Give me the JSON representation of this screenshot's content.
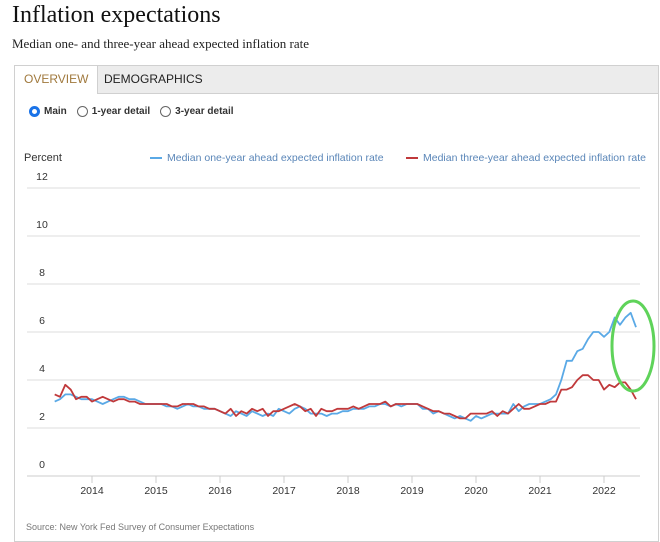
{
  "title": "Inflation expectations",
  "subtitle": "Median one- and three-year ahead expected inflation rate",
  "tabs": [
    {
      "label": "OVERVIEW",
      "active": true
    },
    {
      "label": "DEMOGRAPHICS",
      "active": false
    }
  ],
  "radios": [
    {
      "label": "Main",
      "selected": true
    },
    {
      "label": "1-year detail",
      "selected": false
    },
    {
      "label": "3-year detail",
      "selected": false
    }
  ],
  "source": "Source: New York Fed Survey of Consumer Expectations",
  "annotation": {
    "shape": "ellipse",
    "color": "#5fd35a",
    "target": "latest values (2022)"
  },
  "chart_data": {
    "type": "line",
    "ylabel": "Percent",
    "ylim": [
      0,
      12
    ],
    "yticks": [
      "0",
      "2",
      "4",
      "6",
      "8",
      "10",
      "12"
    ],
    "xticks": [
      "2014",
      "2015",
      "2016",
      "2017",
      "2018",
      "2019",
      "2020",
      "2021",
      "2022"
    ],
    "x_start": "2013-06",
    "x_end": "2022-07",
    "frequency": "monthly",
    "grid": true,
    "legend": "top",
    "series": [
      {
        "name": "Median one-year ahead expected inflation rate",
        "color": "#5aa9e6",
        "values": [
          3.1,
          3.2,
          3.4,
          3.4,
          3.3,
          3.2,
          3.2,
          3.2,
          3.1,
          3.0,
          3.1,
          3.2,
          3.3,
          3.3,
          3.2,
          3.2,
          3.1,
          3.0,
          3.0,
          3.0,
          3.0,
          2.9,
          2.9,
          2.8,
          2.9,
          3.0,
          2.9,
          2.9,
          2.8,
          2.8,
          2.8,
          2.7,
          2.6,
          2.5,
          2.7,
          2.6,
          2.5,
          2.7,
          2.6,
          2.5,
          2.6,
          2.5,
          2.8,
          2.7,
          2.6,
          2.8,
          2.9,
          2.8,
          2.6,
          2.6,
          2.6,
          2.5,
          2.6,
          2.6,
          2.7,
          2.7,
          2.8,
          2.8,
          2.8,
          2.9,
          2.9,
          3.0,
          3.0,
          2.9,
          3.0,
          2.9,
          3.0,
          3.0,
          3.0,
          2.8,
          2.8,
          2.6,
          2.7,
          2.6,
          2.5,
          2.4,
          2.5,
          2.4,
          2.3,
          2.5,
          2.4,
          2.5,
          2.6,
          2.6,
          2.6,
          2.6,
          3.0,
          2.7,
          2.9,
          3.0,
          3.0,
          3.0,
          3.1,
          3.2,
          3.4,
          4.0,
          4.8,
          4.8,
          5.2,
          5.3,
          5.7,
          6.0,
          6.0,
          5.8,
          6.0,
          6.6,
          6.3,
          6.6,
          6.8,
          6.2
        ]
      },
      {
        "name": "Median three-year ahead expected inflation rate",
        "color": "#c0393b",
        "values": [
          3.4,
          3.3,
          3.8,
          3.6,
          3.2,
          3.3,
          3.3,
          3.1,
          3.2,
          3.3,
          3.2,
          3.1,
          3.2,
          3.2,
          3.1,
          3.1,
          3.0,
          3.0,
          3.0,
          3.0,
          3.0,
          3.0,
          2.9,
          2.9,
          3.0,
          3.0,
          3.0,
          2.9,
          2.9,
          2.8,
          2.8,
          2.7,
          2.6,
          2.8,
          2.5,
          2.7,
          2.6,
          2.8,
          2.7,
          2.8,
          2.5,
          2.7,
          2.7,
          2.8,
          2.9,
          3.0,
          2.9,
          2.7,
          2.8,
          2.5,
          2.8,
          2.7,
          2.7,
          2.8,
          2.8,
          2.8,
          2.9,
          2.8,
          2.9,
          3.0,
          3.0,
          3.0,
          3.1,
          2.9,
          3.0,
          3.0,
          3.0,
          3.0,
          3.0,
          2.9,
          2.8,
          2.7,
          2.7,
          2.6,
          2.6,
          2.5,
          2.4,
          2.4,
          2.6,
          2.6,
          2.6,
          2.6,
          2.7,
          2.5,
          2.7,
          2.6,
          2.8,
          3.0,
          2.8,
          2.8,
          2.9,
          3.0,
          3.0,
          3.1,
          3.1,
          3.6,
          3.6,
          3.7,
          4.0,
          4.2,
          4.2,
          4.0,
          4.0,
          3.6,
          3.8,
          3.7,
          3.9,
          3.9,
          3.6,
          3.2
        ]
      }
    ]
  }
}
